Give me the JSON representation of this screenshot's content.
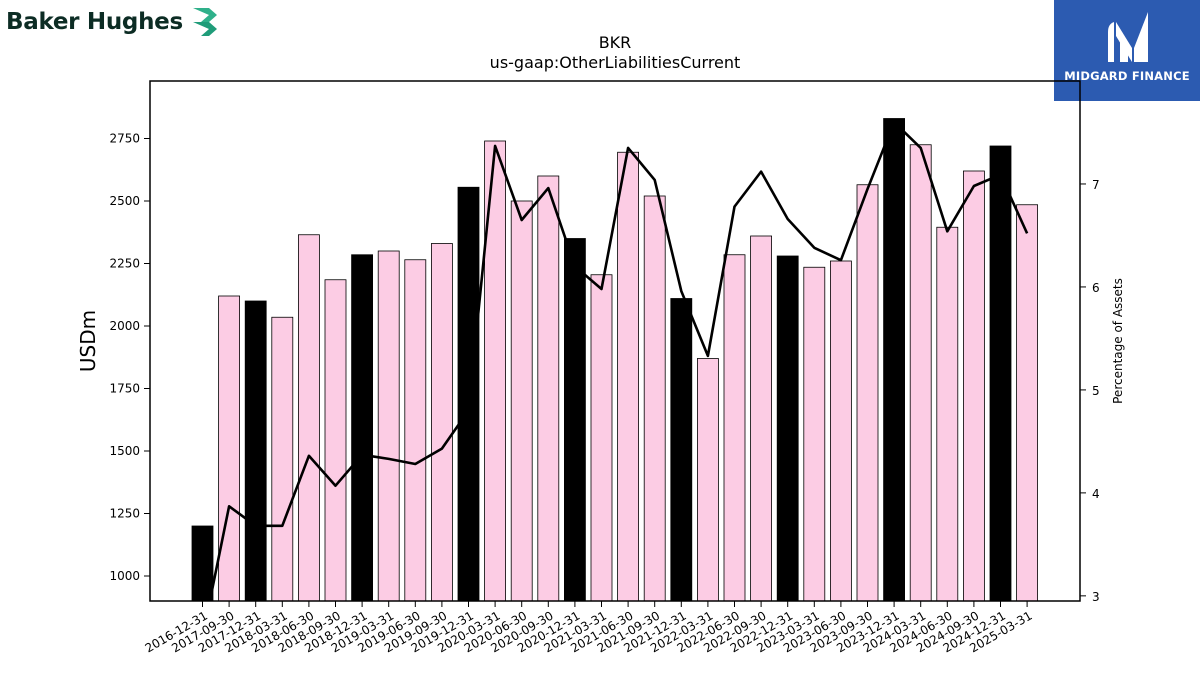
{
  "brand": {
    "name": "Baker Hughes",
    "icon": "baker-hughes-chevron-icon",
    "color": "#0c2c24",
    "accent": "#2fb08a"
  },
  "badge": {
    "name": "MIDGARD FINANCE",
    "icon": "midgard-m-icon",
    "background": "#2c5bb1"
  },
  "chart_data": {
    "type": "bar",
    "title": "BKR",
    "subtitle": "us-gaap:OtherLiabilitiesCurrent",
    "ylabel": "USDm",
    "y2label": "Percentage of Assets",
    "ylim": [
      900,
      2980
    ],
    "y2lim": [
      2.95,
      8.0
    ],
    "yticks": [
      1000,
      1250,
      1500,
      1750,
      2000,
      2250,
      2500,
      2750
    ],
    "y2ticks": [
      3,
      4,
      5,
      6,
      7
    ],
    "grid": false,
    "categories": [
      "2016-12-31",
      "2017-09-30",
      "2017-12-31",
      "2018-03-31",
      "2018-06-30",
      "2018-09-30",
      "2018-12-31",
      "2019-03-31",
      "2019-06-30",
      "2019-09-30",
      "2019-12-31",
      "2020-03-31",
      "2020-06-30",
      "2020-09-30",
      "2020-12-31",
      "2021-03-31",
      "2021-06-30",
      "2021-09-30",
      "2021-12-31",
      "2022-03-31",
      "2022-06-30",
      "2022-09-30",
      "2022-12-31",
      "2023-03-31",
      "2023-06-30",
      "2023-09-30",
      "2023-12-31",
      "2024-03-31",
      "2024-06-30",
      "2024-09-30",
      "2024-12-31",
      "2025-03-31"
    ],
    "series": [
      {
        "kind": "bar",
        "values": [
          1200,
          2120,
          2100,
          2035,
          2365,
          2185,
          2285,
          2300,
          2265,
          2330,
          2555,
          2740,
          2500,
          2600,
          2350,
          2205,
          2695,
          2520,
          2110,
          1870,
          2285,
          2360,
          2280,
          2235,
          2260,
          2565,
          2830,
          2725,
          2395,
          2620,
          2720,
          2485
        ],
        "year_end": [
          true,
          false,
          true,
          false,
          false,
          false,
          true,
          false,
          false,
          false,
          true,
          false,
          false,
          false,
          true,
          false,
          false,
          false,
          true,
          false,
          false,
          false,
          true,
          false,
          false,
          false,
          true,
          false,
          false,
          false,
          true,
          false
        ],
        "color_year_end": "#000000",
        "color_quarter": "#fccce4"
      },
      {
        "kind": "line",
        "axis": "right",
        "values": [
          2.6,
          3.87,
          3.68,
          3.68,
          4.36,
          4.07,
          4.37,
          4.33,
          4.28,
          4.43,
          4.8,
          7.37,
          6.65,
          6.96,
          6.2,
          5.98,
          7.35,
          7.04,
          5.96,
          5.33,
          6.78,
          7.12,
          6.66,
          6.38,
          6.26,
          6.95,
          7.6,
          7.35,
          6.54,
          6.98,
          7.09,
          6.52
        ],
        "color": "#000000"
      }
    ]
  }
}
